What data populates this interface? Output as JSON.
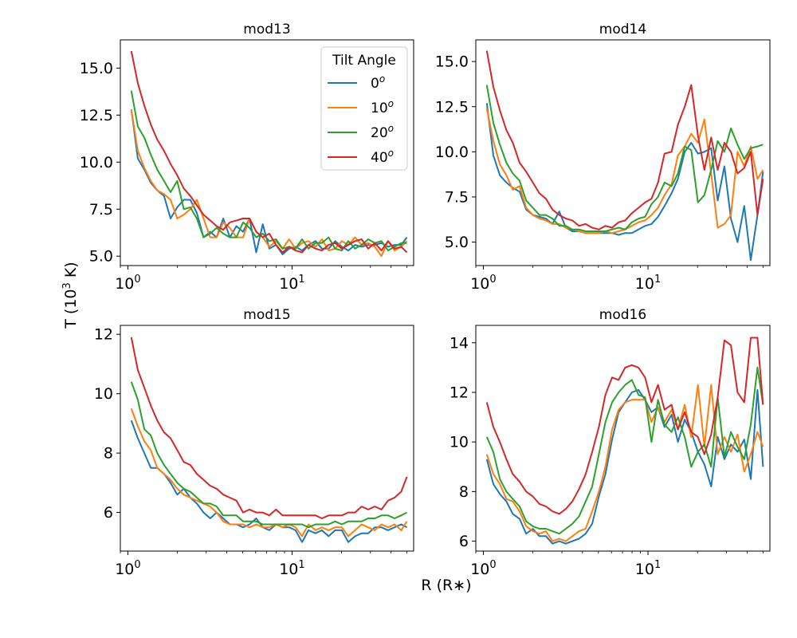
{
  "figure": {
    "ylabel": "T (10³ K)",
    "xlabel": "R (R∗)",
    "legend": {
      "title": "Tilt Angle",
      "entries": [
        {
          "label": "0",
          "sup": "o",
          "color": "#1f77b4"
        },
        {
          "label": "10",
          "sup": "o",
          "color": "#ff7f0e"
        },
        {
          "label": "20",
          "sup": "o",
          "color": "#2ca02c"
        },
        {
          "label": "40",
          "sup": "o",
          "color": "#d62728"
        }
      ]
    }
  },
  "chart_data": [
    {
      "type": "line",
      "title": "mod13",
      "xscale": "log",
      "xlim": [
        0.9,
        55
      ],
      "ylim": [
        4.5,
        16.5
      ],
      "yticks": [
        5.0,
        7.5,
        10.0,
        12.5,
        15.0
      ],
      "ytick_labels": [
        "5.0",
        "7.5",
        "10.0",
        "12.5",
        "15.0"
      ],
      "xticks": [
        1,
        10
      ],
      "xtick_labels": [
        {
          "base": "10",
          "exp": "0"
        },
        {
          "base": "10",
          "exp": "1"
        }
      ],
      "legend_position": "top-right",
      "x": [
        1.05,
        1.15,
        1.26,
        1.38,
        1.51,
        1.66,
        1.82,
        2.0,
        2.19,
        2.4,
        2.63,
        2.89,
        3.17,
        3.47,
        3.81,
        4.18,
        4.58,
        5.03,
        5.51,
        6.05,
        6.63,
        7.27,
        7.98,
        8.75,
        9.6,
        10.5,
        11.5,
        12.6,
        13.9,
        15.2,
        16.7,
        18.3,
        20.1,
        22.0,
        24.2,
        26.5,
        29.1,
        31.9,
        35.0,
        38.4,
        42.1,
        46.2,
        50.0
      ],
      "series": [
        {
          "name": "0°",
          "color": "#1f77b4",
          "values": [
            12.8,
            10.2,
            9.6,
            8.9,
            8.5,
            8.2,
            7.0,
            7.6,
            8.0,
            8.0,
            7.3,
            6.0,
            6.3,
            6.0,
            7.0,
            6.0,
            6.6,
            6.3,
            7.0,
            5.2,
            6.7,
            5.4,
            5.6,
            5.1,
            5.4,
            5.5,
            5.3,
            5.6,
            5.8,
            5.4,
            5.4,
            5.8,
            5.5,
            5.3,
            5.6,
            5.5,
            5.6,
            5.6,
            5.7,
            5.5,
            5.6,
            5.6,
            6.0
          ]
        },
        {
          "name": "10°",
          "color": "#ff7f0e",
          "values": [
            12.8,
            10.6,
            9.7,
            9.0,
            8.5,
            8.3,
            8.0,
            7.0,
            7.2,
            7.5,
            8.0,
            7.0,
            6.0,
            6.0,
            6.8,
            6.5,
            6.0,
            6.0,
            7.0,
            6.3,
            6.0,
            5.5,
            5.8,
            5.4,
            5.9,
            5.4,
            5.7,
            5.8,
            5.5,
            5.9,
            5.3,
            5.4,
            5.8,
            5.6,
            6.0,
            5.6,
            5.7,
            5.5,
            5.0,
            5.8,
            5.3,
            5.5,
            5.8
          ]
        },
        {
          "name": "20°",
          "color": "#2ca02c",
          "values": [
            13.8,
            11.9,
            11.3,
            10.4,
            9.6,
            9.0,
            8.4,
            9.0,
            7.5,
            7.6,
            7.0,
            6.0,
            6.2,
            6.5,
            6.2,
            6.0,
            6.0,
            6.8,
            6.5,
            6.0,
            6.2,
            5.8,
            5.9,
            5.4,
            5.5,
            5.4,
            5.9,
            5.4,
            5.7,
            5.7,
            6.0,
            5.4,
            5.3,
            5.8,
            5.4,
            5.6,
            5.9,
            5.7,
            5.8,
            5.3,
            5.5,
            5.7,
            5.7
          ]
        },
        {
          "name": "40°",
          "color": "#d62728",
          "values": [
            15.9,
            14.2,
            13.0,
            12.0,
            11.2,
            10.6,
            9.9,
            9.3,
            8.6,
            8.2,
            7.7,
            7.2,
            6.9,
            6.6,
            6.4,
            6.8,
            6.9,
            7.0,
            7.0,
            6.3,
            6.0,
            6.2,
            5.6,
            5.2,
            5.5,
            5.3,
            5.2,
            5.6,
            5.4,
            5.3,
            5.6,
            5.7,
            5.4,
            5.6,
            5.8,
            5.9,
            5.4,
            5.7,
            5.3,
            5.8,
            5.4,
            5.5,
            5.2
          ]
        }
      ]
    },
    {
      "type": "line",
      "title": "mod14",
      "xscale": "log",
      "xlim": [
        0.9,
        55
      ],
      "ylim": [
        3.7,
        16.2
      ],
      "yticks": [
        5.0,
        7.5,
        10.0,
        12.5,
        15.0
      ],
      "ytick_labels": [
        "5.0",
        "7.5",
        "10.0",
        "12.5",
        "15.0"
      ],
      "xticks": [
        1,
        10
      ],
      "xtick_labels": [
        {
          "base": "10",
          "exp": "0"
        },
        {
          "base": "10",
          "exp": "1"
        }
      ],
      "x": [
        1.05,
        1.15,
        1.26,
        1.38,
        1.51,
        1.66,
        1.82,
        2.0,
        2.19,
        2.4,
        2.63,
        2.89,
        3.17,
        3.47,
        3.81,
        4.18,
        4.58,
        5.03,
        5.51,
        6.05,
        6.63,
        7.27,
        7.98,
        8.75,
        9.6,
        10.5,
        11.5,
        12.6,
        13.9,
        15.2,
        16.7,
        18.3,
        20.1,
        22.0,
        24.2,
        26.5,
        29.1,
        31.9,
        35.0,
        38.4,
        42.1,
        46.2,
        50.0
      ],
      "series": [
        {
          "name": "0°",
          "color": "#1f77b4",
          "values": [
            12.7,
            9.8,
            8.7,
            8.3,
            8.0,
            7.8,
            6.8,
            6.5,
            6.4,
            6.3,
            6.0,
            6.7,
            5.8,
            5.6,
            5.6,
            5.5,
            5.5,
            5.5,
            5.5,
            5.5,
            5.4,
            5.5,
            5.5,
            5.7,
            5.9,
            6.0,
            6.4,
            7.0,
            7.7,
            8.5,
            10.0,
            10.5,
            9.9,
            10.0,
            10.2,
            7.3,
            9.2,
            6.3,
            5.0,
            7.0,
            4.0,
            6.5,
            8.9
          ]
        },
        {
          "name": "10°",
          "color": "#ff7f0e",
          "values": [
            12.4,
            10.6,
            9.3,
            8.7,
            7.9,
            8.1,
            6.9,
            6.5,
            6.3,
            6.2,
            6.0,
            6.0,
            5.8,
            5.7,
            5.6,
            5.5,
            5.5,
            5.5,
            5.6,
            5.5,
            5.6,
            5.7,
            5.9,
            6.1,
            6.2,
            6.5,
            6.9,
            7.6,
            8.2,
            9.8,
            10.3,
            11.0,
            10.5,
            11.8,
            8.8,
            5.8,
            6.0,
            6.5,
            10.0,
            9.2,
            10.3,
            8.5,
            9.0
          ]
        },
        {
          "name": "20°",
          "color": "#2ca02c",
          "values": [
            13.7,
            11.6,
            10.4,
            9.4,
            8.8,
            8.4,
            7.3,
            6.9,
            6.5,
            6.5,
            6.3,
            5.9,
            5.9,
            5.7,
            5.7,
            5.6,
            5.6,
            5.6,
            5.6,
            5.7,
            5.8,
            5.7,
            6.1,
            6.3,
            6.4,
            7.1,
            7.5,
            8.3,
            8.1,
            8.8,
            10.3,
            10.1,
            7.2,
            7.6,
            9.0,
            10.6,
            10.0,
            11.3,
            10.4,
            9.6,
            10.2,
            10.3,
            10.4
          ]
        },
        {
          "name": "40°",
          "color": "#d62728",
          "values": [
            15.6,
            13.6,
            12.3,
            11.2,
            10.5,
            9.4,
            8.9,
            8.3,
            7.7,
            7.4,
            6.8,
            6.5,
            6.3,
            6.2,
            5.9,
            6.0,
            5.8,
            5.7,
            5.9,
            5.8,
            6.1,
            6.2,
            6.6,
            6.9,
            7.2,
            7.4,
            8.3,
            9.9,
            10.0,
            11.5,
            12.5,
            13.7,
            10.9,
            9.0,
            10.8,
            9.0,
            10.5,
            10.0,
            8.8,
            9.1,
            10.0,
            6.5,
            8.5
          ]
        }
      ]
    },
    {
      "type": "line",
      "title": "mod15",
      "xscale": "log",
      "xlim": [
        0.9,
        55
      ],
      "ylim": [
        4.7,
        12.3
      ],
      "yticks": [
        6,
        8,
        10,
        12
      ],
      "ytick_labels": [
        "6",
        "8",
        "10",
        "12"
      ],
      "xticks": [
        1,
        10
      ],
      "xtick_labels": [
        {
          "base": "10",
          "exp": "0"
        },
        {
          "base": "10",
          "exp": "1"
        }
      ],
      "x": [
        1.05,
        1.15,
        1.26,
        1.38,
        1.51,
        1.66,
        1.82,
        2.0,
        2.19,
        2.4,
        2.63,
        2.89,
        3.17,
        3.47,
        3.81,
        4.18,
        4.58,
        5.03,
        5.51,
        6.05,
        6.63,
        7.27,
        7.98,
        8.75,
        9.6,
        10.5,
        11.5,
        12.6,
        13.9,
        15.2,
        16.7,
        18.3,
        20.1,
        22.0,
        24.2,
        26.5,
        29.1,
        31.9,
        35.0,
        38.4,
        42.1,
        46.2,
        50.0
      ],
      "series": [
        {
          "name": "0°",
          "color": "#1f77b4",
          "values": [
            9.1,
            8.5,
            8.0,
            7.5,
            7.5,
            7.3,
            7.0,
            6.6,
            6.8,
            6.5,
            6.3,
            6.0,
            5.8,
            6.0,
            5.8,
            5.6,
            5.6,
            5.5,
            5.6,
            5.8,
            5.5,
            5.4,
            5.6,
            5.5,
            5.5,
            5.4,
            5.0,
            5.4,
            5.3,
            5.4,
            5.2,
            5.4,
            5.4,
            5.0,
            5.2,
            5.3,
            5.3,
            5.5,
            5.5,
            5.4,
            5.5,
            5.6,
            5.5
          ]
        },
        {
          "name": "10°",
          "color": "#ff7f0e",
          "values": [
            9.5,
            8.9,
            8.4,
            8.1,
            7.5,
            7.3,
            7.1,
            6.8,
            6.6,
            6.5,
            6.4,
            6.3,
            6.2,
            6.0,
            5.7,
            5.6,
            5.6,
            5.6,
            5.5,
            5.6,
            5.5,
            5.5,
            5.6,
            5.5,
            5.6,
            5.5,
            5.2,
            5.6,
            5.4,
            5.5,
            5.4,
            5.5,
            5.5,
            5.2,
            5.4,
            5.6,
            5.5,
            5.4,
            5.6,
            5.5,
            5.6,
            5.4,
            5.7
          ]
        },
        {
          "name": "20°",
          "color": "#2ca02c",
          "values": [
            10.4,
            9.8,
            8.8,
            8.6,
            8.0,
            7.6,
            7.3,
            7.0,
            6.8,
            6.7,
            6.5,
            6.3,
            6.3,
            6.2,
            5.9,
            5.9,
            5.9,
            5.7,
            5.7,
            5.7,
            5.6,
            5.6,
            5.6,
            5.6,
            5.6,
            5.6,
            5.6,
            5.5,
            5.6,
            5.6,
            5.6,
            5.7,
            5.6,
            5.7,
            5.7,
            5.7,
            5.8,
            5.8,
            5.9,
            5.9,
            5.8,
            5.9,
            6.0
          ]
        },
        {
          "name": "40°",
          "color": "#d62728",
          "values": [
            11.9,
            10.8,
            10.2,
            9.6,
            9.1,
            8.7,
            8.5,
            8.1,
            7.7,
            7.6,
            7.3,
            7.1,
            6.9,
            6.8,
            6.6,
            6.5,
            6.4,
            6.0,
            6.1,
            6.0,
            6.0,
            5.9,
            6.1,
            5.9,
            5.9,
            5.9,
            5.9,
            5.9,
            5.9,
            5.8,
            5.9,
            5.9,
            5.9,
            6.0,
            6.0,
            6.2,
            6.1,
            6.2,
            6.1,
            6.4,
            6.5,
            6.7,
            7.2
          ]
        }
      ]
    },
    {
      "type": "line",
      "title": "mod16",
      "xscale": "log",
      "xlim": [
        0.9,
        55
      ],
      "ylim": [
        5.6,
        14.7
      ],
      "yticks": [
        6,
        8,
        10,
        12,
        14
      ],
      "ytick_labels": [
        "6",
        "8",
        "10",
        "12",
        "14"
      ],
      "xticks": [
        1,
        10
      ],
      "xtick_labels": [
        {
          "base": "10",
          "exp": "0"
        },
        {
          "base": "10",
          "exp": "1"
        }
      ],
      "x": [
        1.05,
        1.15,
        1.26,
        1.38,
        1.51,
        1.66,
        1.82,
        2.0,
        2.19,
        2.4,
        2.63,
        2.89,
        3.17,
        3.47,
        3.81,
        4.18,
        4.58,
        5.03,
        5.51,
        6.05,
        6.63,
        7.27,
        7.98,
        8.75,
        9.6,
        10.5,
        11.5,
        12.6,
        13.9,
        15.2,
        16.7,
        18.3,
        20.1,
        22.0,
        24.2,
        26.5,
        29.1,
        31.9,
        35.0,
        38.4,
        42.1,
        46.2,
        50.0
      ],
      "series": [
        {
          "name": "0°",
          "color": "#1f77b4",
          "values": [
            9.3,
            8.3,
            7.9,
            7.6,
            7.1,
            6.9,
            6.3,
            6.5,
            6.2,
            6.2,
            5.9,
            6.0,
            5.9,
            6.0,
            6.1,
            6.3,
            6.7,
            7.8,
            8.7,
            10.1,
            11.2,
            11.6,
            12.0,
            12.1,
            11.7,
            11.2,
            11.4,
            10.6,
            11.1,
            10.0,
            10.9,
            10.4,
            9.6,
            9.1,
            8.2,
            10.2,
            9.3,
            9.9,
            9.6,
            10.1,
            8.5,
            12.1,
            9.0
          ]
        },
        {
          "name": "10°",
          "color": "#ff7f0e",
          "values": [
            9.5,
            8.7,
            8.3,
            7.7,
            7.6,
            7.2,
            6.6,
            6.4,
            6.3,
            6.4,
            6.0,
            6.1,
            6.0,
            6.2,
            6.4,
            6.5,
            7.2,
            8.0,
            9.0,
            10.5,
            11.3,
            11.6,
            11.7,
            11.7,
            11.7,
            10.8,
            11.4,
            10.8,
            11.3,
            10.5,
            11.5,
            10.2,
            12.3,
            9.8,
            12.3,
            9.5,
            10.2,
            9.6,
            10.3,
            8.8,
            9.5,
            10.4,
            9.8
          ]
        },
        {
          "name": "20°",
          "color": "#2ca02c",
          "values": [
            10.2,
            9.6,
            8.5,
            8.0,
            7.7,
            7.4,
            6.8,
            6.6,
            6.5,
            6.5,
            6.4,
            6.3,
            6.5,
            6.7,
            7.0,
            7.6,
            8.2,
            9.5,
            10.8,
            11.6,
            12.0,
            12.3,
            12.5,
            11.9,
            11.8,
            10.0,
            11.7,
            10.7,
            10.4,
            11.0,
            10.2,
            9.0,
            9.6,
            9.9,
            9.0,
            11.8,
            9.4,
            10.4,
            9.8,
            9.3,
            10.7,
            13.0,
            11.5
          ]
        },
        {
          "name": "40°",
          "color": "#d62728",
          "values": [
            11.6,
            10.6,
            10.0,
            9.3,
            8.7,
            8.4,
            8.0,
            7.8,
            7.5,
            7.4,
            7.2,
            7.1,
            7.3,
            7.6,
            8.1,
            8.7,
            9.6,
            10.6,
            11.9,
            12.6,
            12.5,
            13.0,
            13.1,
            13.0,
            12.6,
            11.6,
            12.3,
            11.3,
            11.5,
            10.5,
            11.2,
            10.4,
            10.2,
            9.5,
            10.3,
            11.8,
            14.1,
            13.9,
            12.0,
            11.6,
            14.2,
            14.2,
            11.5
          ]
        }
      ]
    }
  ]
}
